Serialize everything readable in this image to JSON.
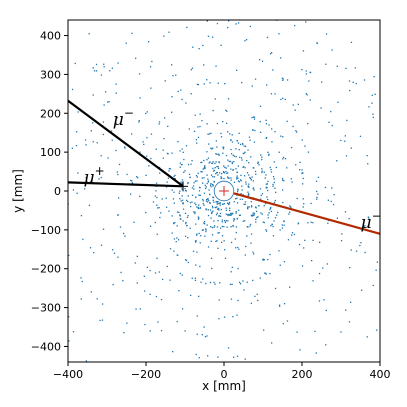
{
  "chart_data": {
    "type": "scatter",
    "xlabel": "x [mm]",
    "ylabel": "y [mm]",
    "xlim": [
      -400,
      400
    ],
    "ylim": [
      -440,
      440
    ],
    "x_ticks": [
      -400,
      -200,
      0,
      200,
      400
    ],
    "y_ticks": [
      -400,
      -300,
      -200,
      -100,
      0,
      100,
      200,
      300,
      400
    ],
    "grid": false,
    "hits": {
      "color": "#1f77b4",
      "layers": [
        {
          "radius": 35,
          "count": 50
        },
        {
          "radius": 48,
          "count": 60
        },
        {
          "radius": 62,
          "count": 70
        },
        {
          "radius": 78,
          "count": 80
        },
        {
          "radius": 95,
          "count": 80
        },
        {
          "radius": 112,
          "count": 80
        },
        {
          "radius": 130,
          "count": 70
        },
        {
          "radius": 150,
          "count": 60
        },
        {
          "radius": 175,
          "count": 60
        },
        {
          "radius": 205,
          "count": 55
        },
        {
          "radius": 240,
          "count": 55
        },
        {
          "radius": 280,
          "count": 50
        },
        {
          "radius": 325,
          "count": 45
        },
        {
          "radius": 375,
          "count": 45
        },
        {
          "radius": 430,
          "count": 40
        }
      ],
      "scattered_background": 220
    },
    "vertices": [
      {
        "x": 0,
        "y": 0,
        "color": "#d62728"
      },
      {
        "x": -105,
        "y": 12,
        "color": "#000000"
      }
    ],
    "inner_circle_radius": 25,
    "tracks": [
      {
        "label": "μ",
        "sup": "−",
        "color": "#000000",
        "points": [
          [
            -105,
            12
          ],
          [
            -400,
            232
          ]
        ],
        "label_at": [
          -285,
          170
        ]
      },
      {
        "label": "μ",
        "sup": "+",
        "color": "#000000",
        "points": [
          [
            -105,
            12
          ],
          [
            -400,
            22
          ]
        ],
        "label_at": [
          -360,
          20
        ]
      },
      {
        "label": "μ",
        "sup": "−",
        "color": "#b22a00",
        "points": [
          [
            25,
            -6
          ],
          [
            400,
            -110
          ]
        ],
        "label_at": [
          350,
          -95
        ]
      }
    ]
  }
}
